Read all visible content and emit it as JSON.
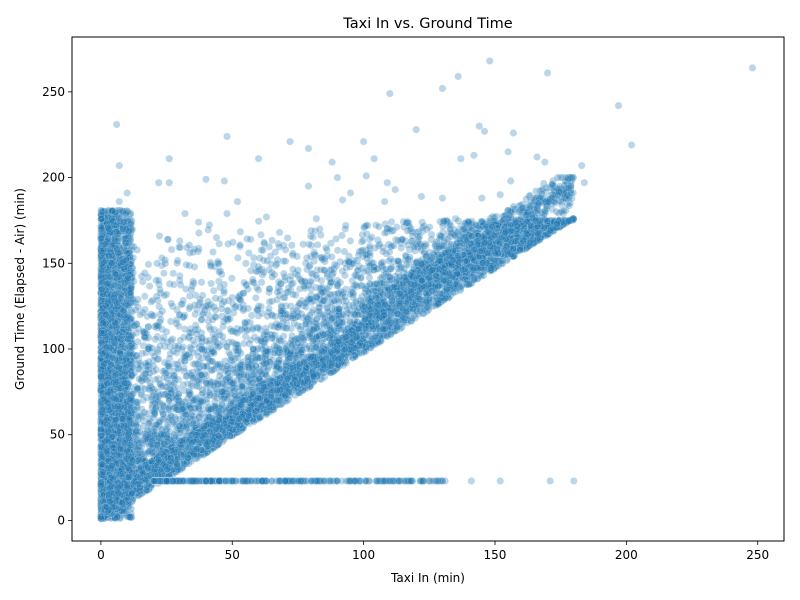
{
  "chart_data": {
    "type": "scatter",
    "title": "Taxi In vs. Ground Time",
    "xlabel": "Taxi In (min)",
    "ylabel": "Ground Time (Elapsed - Air) (min)",
    "xlim": [
      -11,
      260
    ],
    "ylim": [
      -12,
      282
    ],
    "xticks": [
      0,
      50,
      100,
      150,
      200,
      250
    ],
    "yticks": [
      0,
      50,
      100,
      150,
      200,
      250
    ],
    "grid": false,
    "marker_color": "#1f77b4",
    "marker_alpha": 0.3,
    "points": [
      [
        248,
        264
      ],
      [
        148,
        268
      ],
      [
        136,
        259
      ],
      [
        170,
        261
      ],
      [
        130,
        252
      ],
      [
        110,
        249
      ],
      [
        197,
        242
      ],
      [
        202,
        219
      ],
      [
        6,
        231
      ],
      [
        48,
        224
      ],
      [
        72,
        221
      ],
      [
        79,
        217
      ],
      [
        100,
        221
      ],
      [
        120,
        228
      ],
      [
        144,
        230
      ],
      [
        146,
        227
      ],
      [
        157,
        226
      ],
      [
        7,
        207
      ],
      [
        26,
        211
      ],
      [
        60,
        211
      ],
      [
        88,
        209
      ],
      [
        104,
        211
      ],
      [
        137,
        211
      ],
      [
        142,
        213
      ],
      [
        155,
        215
      ],
      [
        166,
        212
      ],
      [
        169,
        209
      ],
      [
        10,
        191
      ],
      [
        22,
        197
      ],
      [
        26,
        197
      ],
      [
        40,
        199
      ],
      [
        47,
        198
      ],
      [
        79,
        195
      ],
      [
        90,
        200
      ],
      [
        95,
        191
      ],
      [
        101,
        201
      ],
      [
        109,
        197
      ],
      [
        112,
        193
      ],
      [
        183,
        207
      ],
      [
        184,
        197
      ],
      [
        179,
        191
      ],
      [
        7,
        186
      ],
      [
        32,
        179
      ],
      [
        48,
        179
      ],
      [
        52,
        186
      ],
      [
        63,
        177
      ],
      [
        82,
        176
      ],
      [
        92,
        187
      ],
      [
        108,
        186
      ],
      [
        122,
        189
      ],
      [
        130,
        188
      ],
      [
        145,
        188
      ],
      [
        152,
        190
      ],
      [
        156,
        198
      ],
      [
        172,
        190
      ],
      [
        30,
        163
      ],
      [
        44,
        165
      ],
      [
        57,
        164
      ],
      [
        68,
        168
      ],
      [
        80,
        169
      ],
      [
        93,
        170
      ],
      [
        101,
        172
      ],
      [
        110,
        170
      ],
      [
        123,
        160
      ],
      [
        135,
        176
      ],
      [
        140,
        174
      ],
      [
        154,
        178
      ],
      [
        160,
        177
      ],
      [
        30,
        140
      ],
      [
        45,
        145
      ],
      [
        60,
        148
      ],
      [
        70,
        142
      ],
      [
        78,
        150
      ],
      [
        85,
        146
      ],
      [
        96,
        150
      ],
      [
        104,
        146
      ],
      [
        118,
        143
      ],
      [
        2,
        120
      ],
      [
        3,
        170
      ],
      [
        4,
        150
      ],
      [
        5,
        130
      ],
      [
        6,
        110
      ],
      [
        8,
        95
      ],
      [
        9,
        80
      ],
      [
        10,
        160
      ],
      [
        12,
        70
      ],
      [
        15,
        120
      ],
      [
        18,
        100
      ],
      [
        20,
        90
      ],
      [
        22,
        140
      ],
      [
        25,
        110
      ],
      [
        28,
        80
      ],
      [
        30,
        120
      ],
      [
        32,
        95
      ],
      [
        35,
        105
      ],
      [
        38,
        85
      ],
      [
        40,
        125
      ],
      [
        42,
        100
      ],
      [
        45,
        110
      ],
      [
        48,
        90
      ],
      [
        50,
        130
      ],
      [
        52,
        95
      ],
      [
        55,
        115
      ],
      [
        58,
        100
      ],
      [
        60,
        125
      ],
      [
        63,
        110
      ],
      [
        65,
        120
      ],
      [
        68,
        105
      ],
      [
        70,
        130
      ],
      [
        73,
        118
      ],
      [
        75,
        125
      ],
      [
        78,
        112
      ],
      [
        80,
        135
      ],
      [
        83,
        122
      ],
      [
        85,
        128
      ],
      [
        88,
        118
      ],
      [
        90,
        140
      ],
      [
        93,
        125
      ],
      [
        95,
        132
      ],
      [
        98,
        120
      ],
      [
        100,
        145
      ],
      [
        103,
        130
      ],
      [
        105,
        138
      ],
      [
        108,
        126
      ],
      [
        110,
        140
      ],
      [
        114,
        132
      ],
      [
        118,
        138
      ],
      [
        122,
        140
      ],
      [
        126,
        146
      ],
      [
        130,
        148
      ],
      [
        134,
        152
      ],
      [
        138,
        155
      ],
      [
        142,
        158
      ],
      [
        146,
        162
      ],
      [
        150,
        166
      ],
      [
        154,
        168
      ],
      [
        158,
        174
      ],
      [
        162,
        178
      ],
      [
        166,
        182
      ],
      [
        170,
        186
      ],
      [
        174,
        190
      ],
      [
        178,
        194
      ],
      [
        2,
        8
      ],
      [
        3,
        15
      ],
      [
        4,
        25
      ],
      [
        5,
        40
      ],
      [
        6,
        55
      ],
      [
        7,
        65
      ],
      [
        8,
        30
      ],
      [
        9,
        45
      ],
      [
        10,
        20
      ],
      [
        12,
        35
      ],
      [
        14,
        50
      ],
      [
        16,
        28
      ],
      [
        18,
        40
      ],
      [
        20,
        60
      ],
      [
        22,
        35
      ],
      [
        24,
        50
      ],
      [
        26,
        70
      ],
      [
        28,
        45
      ],
      [
        30,
        55
      ],
      [
        34,
        60
      ],
      [
        38,
        70
      ],
      [
        42,
        65
      ],
      [
        46,
        75
      ],
      [
        50,
        80
      ],
      [
        54,
        70
      ],
      [
        58,
        85
      ],
      [
        62,
        78
      ],
      [
        66,
        90
      ],
      [
        20,
        23
      ],
      [
        25,
        23
      ],
      [
        30,
        23
      ],
      [
        35,
        23
      ],
      [
        40,
        23
      ],
      [
        45,
        23
      ],
      [
        50,
        23
      ],
      [
        55,
        23
      ],
      [
        60,
        23
      ],
      [
        65,
        23
      ],
      [
        70,
        23
      ],
      [
        75,
        23
      ],
      [
        80,
        23
      ],
      [
        85,
        23
      ],
      [
        90,
        23
      ],
      [
        95,
        23
      ],
      [
        101,
        23
      ],
      [
        105,
        23
      ],
      [
        110,
        23
      ],
      [
        118,
        23
      ],
      [
        122,
        23
      ],
      [
        126,
        23
      ],
      [
        131,
        23
      ],
      [
        141,
        23
      ],
      [
        152,
        23
      ],
      [
        171,
        23
      ],
      [
        180,
        23
      ]
    ],
    "dense_region_note": "",
    "dense": {
      "vertical_band": {
        "x_range": [
          0,
          12
        ],
        "y_range": [
          1,
          182
        ]
      },
      "lower_diagonal": {
        "x_range": [
          0,
          185
        ],
        "y_range": [
          1,
          200
        ]
      },
      "flat_band": {
        "x_range": [
          20,
          180
        ],
        "y": 23
      }
    }
  }
}
